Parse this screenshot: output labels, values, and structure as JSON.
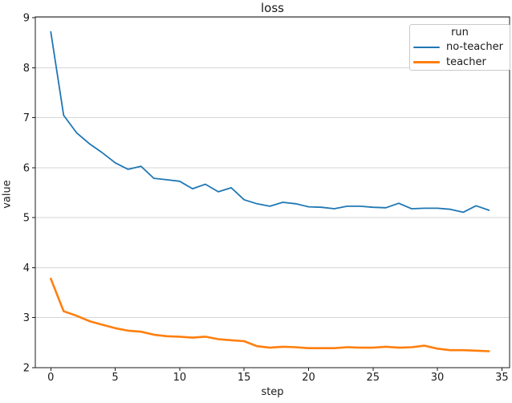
{
  "chart_data": {
    "type": "line",
    "title": "loss",
    "xlabel": "step",
    "ylabel": "value",
    "xlim": [
      -1.2,
      35.6
    ],
    "ylim": [
      2.0,
      9.02
    ],
    "x_ticks": [
      0,
      5,
      10,
      15,
      20,
      25,
      30,
      35
    ],
    "y_ticks": [
      2,
      3,
      4,
      5,
      6,
      7,
      8,
      9
    ],
    "grid": "horizontal",
    "grid_color": "#d6d6d6",
    "spine_color": "#1a1a1a",
    "legend_title": "run",
    "legend_position": "upper right",
    "x": [
      0,
      1,
      2,
      3,
      4,
      5,
      6,
      7,
      8,
      9,
      10,
      11,
      12,
      13,
      14,
      15,
      16,
      17,
      18,
      19,
      20,
      21,
      22,
      23,
      24,
      25,
      26,
      27,
      28,
      29,
      30,
      31,
      32,
      33,
      34
    ],
    "series": [
      {
        "name": "no-teacher",
        "color": "#1f77b4",
        "line_width": 1.8,
        "values": [
          8.72,
          7.05,
          6.7,
          6.48,
          6.3,
          6.1,
          5.97,
          6.03,
          5.79,
          5.76,
          5.73,
          5.58,
          5.67,
          5.52,
          5.6,
          5.36,
          5.28,
          5.23,
          5.31,
          5.28,
          5.22,
          5.21,
          5.18,
          5.23,
          5.23,
          5.21,
          5.2,
          5.29,
          5.18,
          5.19,
          5.19,
          5.17,
          5.11,
          5.24,
          5.15
        ]
      },
      {
        "name": "teacher",
        "color": "#ff7f0e",
        "line_width": 2.6,
        "values": [
          3.78,
          3.13,
          3.04,
          2.93,
          2.86,
          2.79,
          2.74,
          2.72,
          2.66,
          2.63,
          2.62,
          2.6,
          2.62,
          2.57,
          2.55,
          2.53,
          2.43,
          2.4,
          2.42,
          2.41,
          2.39,
          2.39,
          2.39,
          2.41,
          2.4,
          2.4,
          2.42,
          2.4,
          2.41,
          2.44,
          2.38,
          2.35,
          2.35,
          2.34,
          2.33
        ]
      }
    ]
  }
}
